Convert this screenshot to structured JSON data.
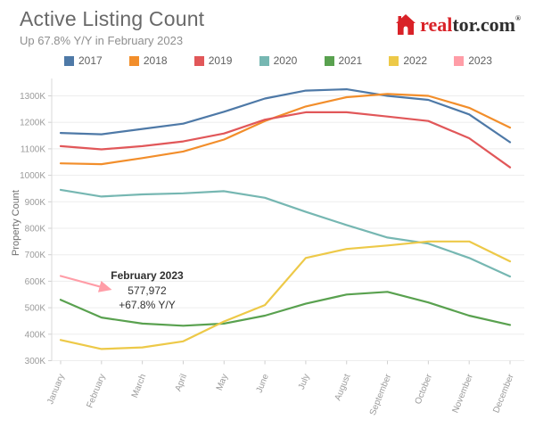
{
  "header": {
    "title": "Active Listing Count",
    "subtitle": "Up 67.8% Y/Y in February 2023"
  },
  "logo": {
    "house_icon": "realtor-house-icon",
    "part_red": "real",
    "part_dark": "tor.com",
    "registered_mark": "®",
    "red": "#d92228",
    "dark": "#2e2e2e"
  },
  "chart_data": {
    "type": "line",
    "title": "Active Listing Count",
    "ylabel": "Property Count",
    "units": "thousands of listings (K = ×1000)",
    "x_categories": [
      "January",
      "February",
      "March",
      "April",
      "May",
      "June",
      "July",
      "August",
      "September",
      "October",
      "November",
      "December"
    ],
    "y_ticks": [
      "300K",
      "400K",
      "500K",
      "600K",
      "700K",
      "800K",
      "900K",
      "1000K",
      "1100K",
      "1200K",
      "1300K"
    ],
    "ylim": [
      300,
      1300
    ],
    "grid": "horizontal-only",
    "legend_position": "top",
    "series": [
      {
        "name": "2017",
        "color": "#4e79a7",
        "values": [
          1160,
          1155,
          1175,
          1195,
          1240,
          1290,
          1320,
          1325,
          1300,
          1285,
          1230,
          1125
        ]
      },
      {
        "name": "2018",
        "color": "#f28e2b",
        "values": [
          1045,
          1042,
          1065,
          1090,
          1135,
          1205,
          1260,
          1295,
          1307,
          1300,
          1255,
          1180
        ]
      },
      {
        "name": "2019",
        "color": "#e15759",
        "values": [
          1110,
          1098,
          1110,
          1128,
          1158,
          1210,
          1238,
          1238,
          1222,
          1205,
          1140,
          1030
        ]
      },
      {
        "name": "2020",
        "color": "#76b7b2",
        "values": [
          945,
          920,
          928,
          932,
          940,
          915,
          862,
          812,
          765,
          742,
          688,
          618
        ]
      },
      {
        "name": "2021",
        "color": "#59a14f",
        "values": [
          530,
          463,
          440,
          432,
          440,
          470,
          515,
          550,
          560,
          520,
          470,
          435
        ]
      },
      {
        "name": "2022",
        "color": "#edc948",
        "values": [
          378,
          344,
          350,
          373,
          448,
          510,
          688,
          722,
          735,
          750,
          750,
          675
        ]
      },
      {
        "name": "2023",
        "color": "#ff9da7",
        "values": [
          620,
          578
        ],
        "ends_with_arrow": true
      }
    ],
    "annotation": {
      "title": "February 2023",
      "value": "577,972",
      "delta": "+67.8% Y/Y"
    }
  }
}
